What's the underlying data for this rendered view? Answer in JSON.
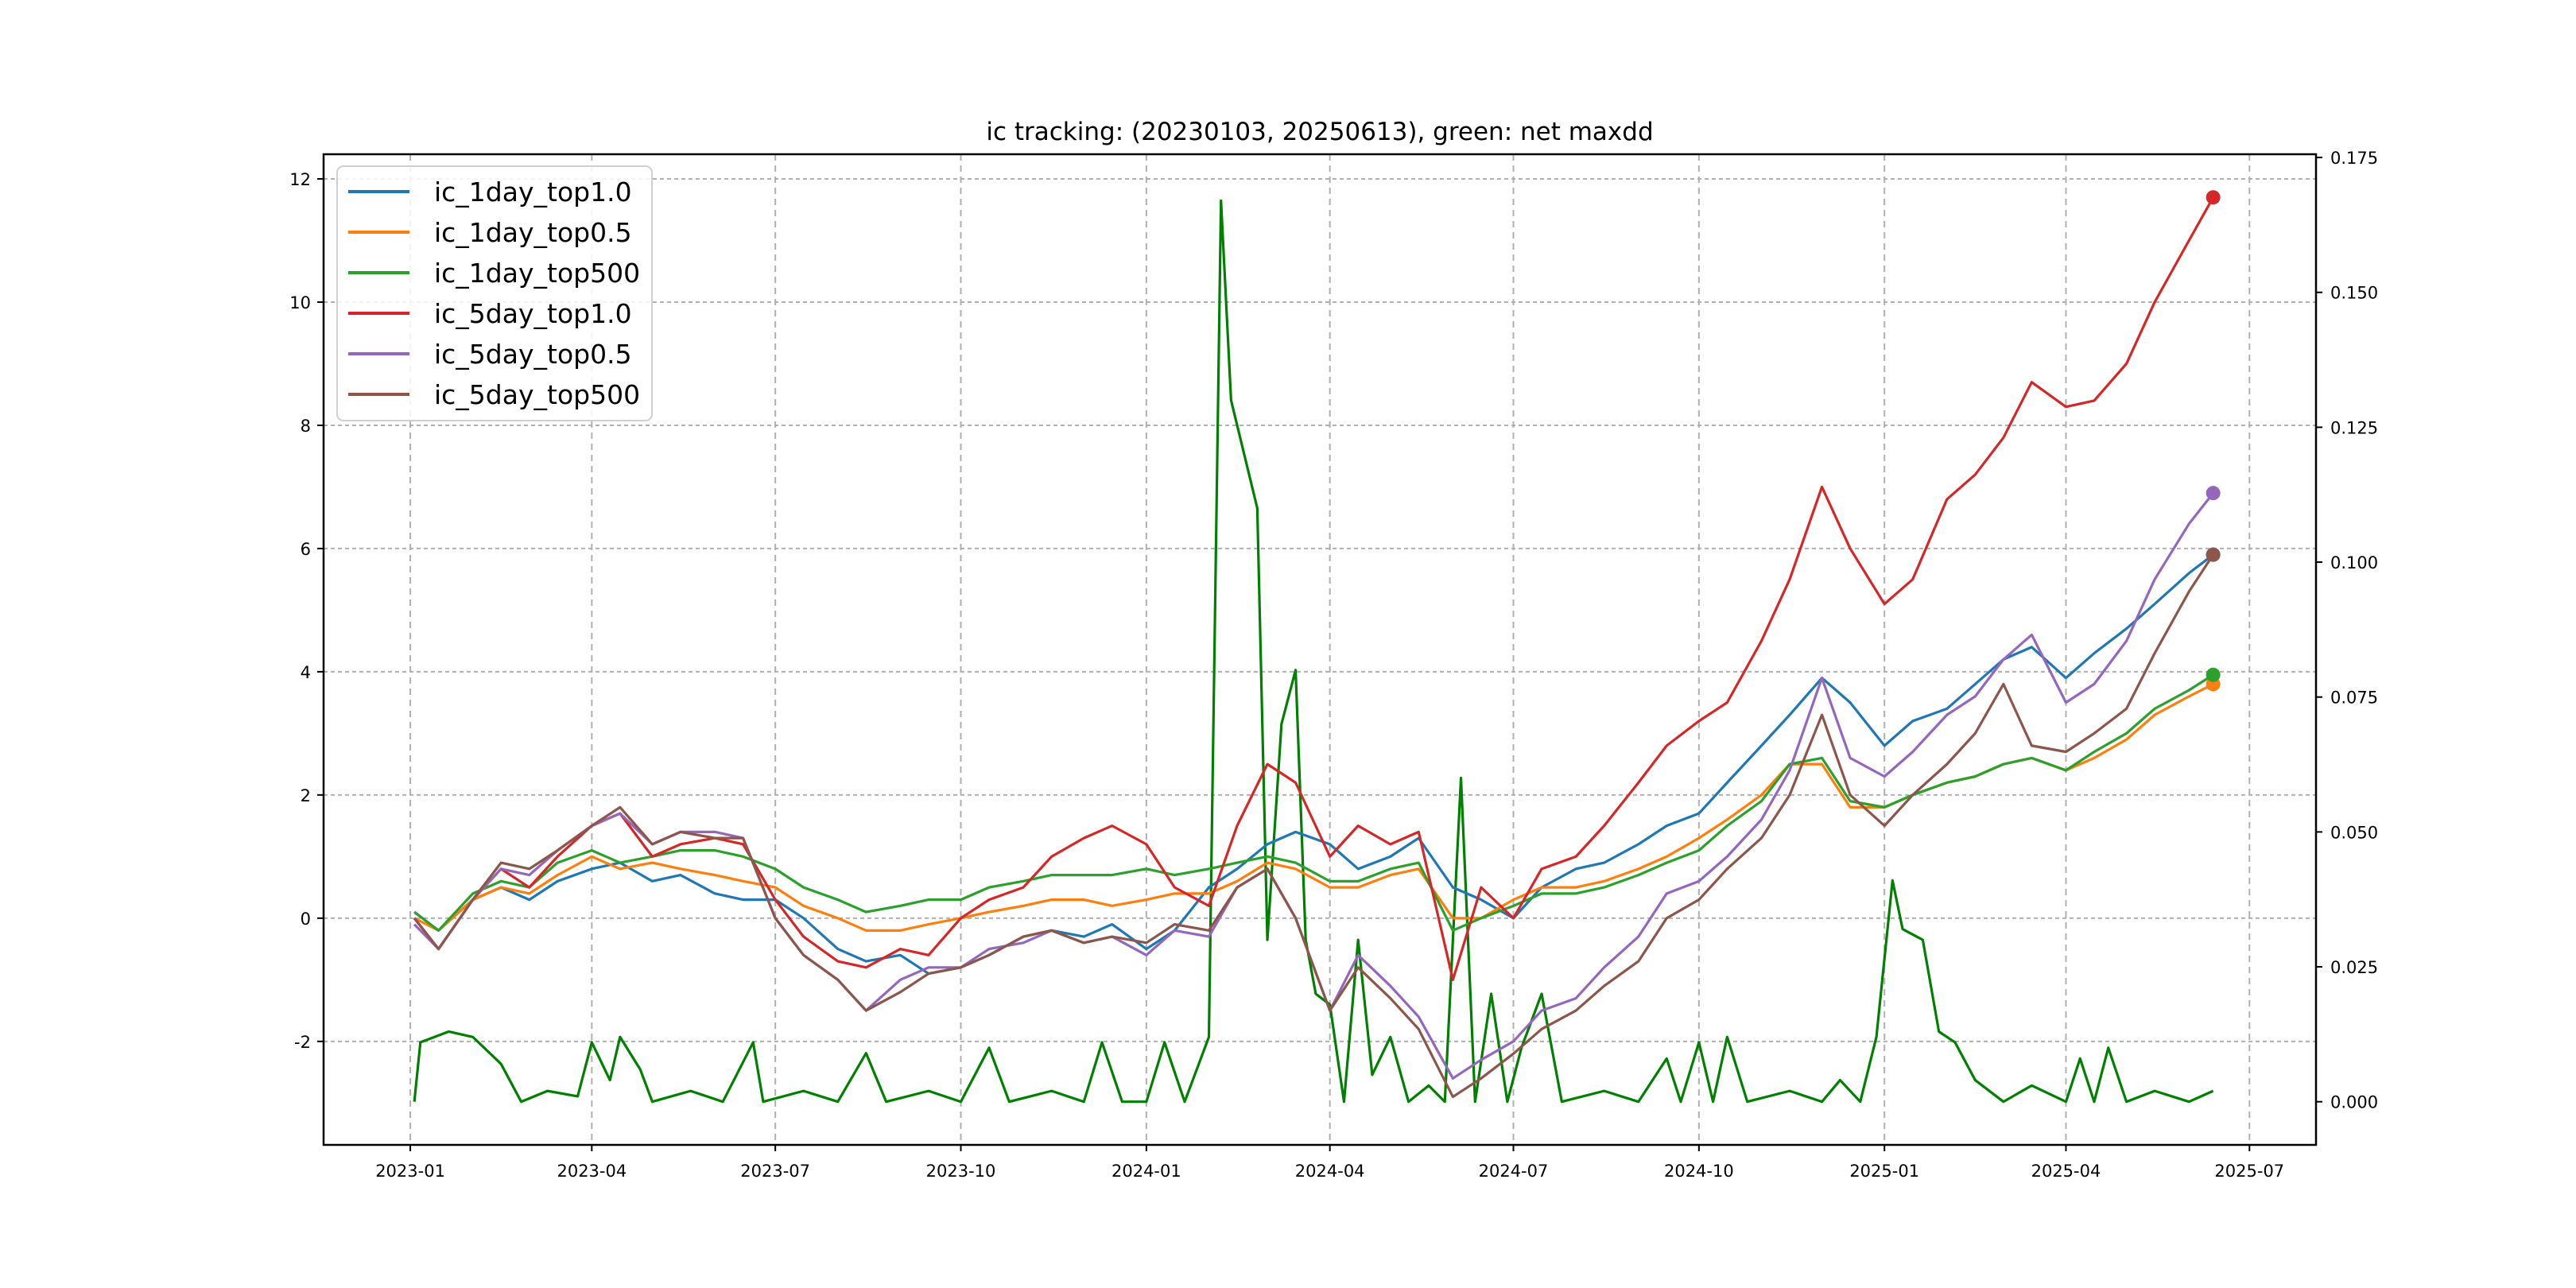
{
  "chart_data": {
    "type": "line",
    "title": "ic tracking: (20230103, 20250613), green: net maxdd",
    "xlabel": "",
    "ylabel": "",
    "xlim": [
      "2022-11-19",
      "2025-08-03"
    ],
    "ylim": [
      -3.68,
      12.4
    ],
    "ylim_right": [
      -0.008,
      0.1756
    ],
    "grid": true,
    "legend_position": "top-left",
    "x_ticks": [
      "2023-01",
      "2023-04",
      "2023-07",
      "2023-10",
      "2024-01",
      "2024-04",
      "2024-07",
      "2024-10",
      "2025-01",
      "2025-04",
      "2025-07"
    ],
    "y_ticks": [
      "-2",
      "0",
      "2",
      "4",
      "6",
      "8",
      "10",
      "12"
    ],
    "y_ticks_right": [
      "0.000",
      "0.025",
      "0.050",
      "0.075",
      "0.100",
      "0.125",
      "0.150",
      "0.175"
    ],
    "x": [
      "2023-01-03",
      "2023-01-15",
      "2023-02-01",
      "2023-02-15",
      "2023-03-01",
      "2023-03-15",
      "2023-04-01",
      "2023-04-15",
      "2023-05-01",
      "2023-05-15",
      "2023-06-01",
      "2023-06-15",
      "2023-07-01",
      "2023-07-15",
      "2023-08-01",
      "2023-08-15",
      "2023-09-01",
      "2023-09-15",
      "2023-10-01",
      "2023-10-15",
      "2023-11-01",
      "2023-11-15",
      "2023-12-01",
      "2023-12-15",
      "2024-01-01",
      "2024-01-15",
      "2024-02-01",
      "2024-02-15",
      "2024-03-01",
      "2024-03-15",
      "2024-04-01",
      "2024-04-15",
      "2024-05-01",
      "2024-05-15",
      "2024-06-01",
      "2024-06-15",
      "2024-07-01",
      "2024-07-15",
      "2024-08-01",
      "2024-08-15",
      "2024-09-01",
      "2024-09-15",
      "2024-10-01",
      "2024-10-15",
      "2024-11-01",
      "2024-11-15",
      "2024-12-01",
      "2024-12-15",
      "2025-01-01",
      "2025-01-15",
      "2025-02-01",
      "2025-02-15",
      "2025-03-01",
      "2025-03-15",
      "2025-04-01",
      "2025-04-15",
      "2025-05-01",
      "2025-05-15",
      "2025-06-01",
      "2025-06-13"
    ],
    "series": [
      {
        "name": "ic_1day_top1.0",
        "color": "#1f77b4",
        "values": [
          0.1,
          -0.2,
          0.3,
          0.5,
          0.3,
          0.6,
          0.8,
          0.9,
          0.6,
          0.7,
          0.4,
          0.3,
          0.3,
          0.0,
          -0.5,
          -0.7,
          -0.6,
          -0.9,
          -0.8,
          -0.6,
          -0.3,
          -0.2,
          -0.3,
          -0.1,
          -0.5,
          -0.2,
          0.5,
          0.8,
          1.2,
          1.4,
          1.2,
          0.8,
          1.0,
          1.3,
          0.5,
          0.3,
          0.0,
          0.5,
          0.8,
          0.9,
          1.2,
          1.5,
          1.7,
          2.2,
          2.8,
          3.3,
          3.9,
          3.5,
          2.8,
          3.2,
          3.4,
          3.8,
          4.2,
          4.4,
          3.9,
          4.3,
          4.7,
          5.1,
          5.6,
          5.9
        ]
      },
      {
        "name": "ic_1day_top0.5",
        "color": "#ff7f0e",
        "values": [
          0.0,
          -0.2,
          0.3,
          0.5,
          0.4,
          0.7,
          1.0,
          0.8,
          0.9,
          0.8,
          0.7,
          0.6,
          0.5,
          0.2,
          0.0,
          -0.2,
          -0.2,
          -0.1,
          0.0,
          0.1,
          0.2,
          0.3,
          0.3,
          0.2,
          0.3,
          0.4,
          0.4,
          0.6,
          0.9,
          0.8,
          0.5,
          0.5,
          0.7,
          0.8,
          0.0,
          0.0,
          0.3,
          0.5,
          0.5,
          0.6,
          0.8,
          1.0,
          1.3,
          1.6,
          2.0,
          2.5,
          2.5,
          1.8,
          1.8,
          2.0,
          2.2,
          2.3,
          2.5,
          2.6,
          2.4,
          2.6,
          2.9,
          3.3,
          3.6,
          3.8
        ]
      },
      {
        "name": "ic_1day_top500",
        "color": "#2ca02c",
        "values": [
          0.1,
          -0.2,
          0.4,
          0.6,
          0.5,
          0.9,
          1.1,
          0.9,
          1.0,
          1.1,
          1.1,
          1.0,
          0.8,
          0.5,
          0.3,
          0.1,
          0.2,
          0.3,
          0.3,
          0.5,
          0.6,
          0.7,
          0.7,
          0.7,
          0.8,
          0.7,
          0.8,
          0.9,
          1.0,
          0.9,
          0.6,
          0.6,
          0.8,
          0.9,
          -0.2,
          0.0,
          0.2,
          0.4,
          0.4,
          0.5,
          0.7,
          0.9,
          1.1,
          1.5,
          1.9,
          2.5,
          2.6,
          1.9,
          1.8,
          2.0,
          2.2,
          2.3,
          2.5,
          2.6,
          2.4,
          2.7,
          3.0,
          3.4,
          3.7,
          3.95
        ]
      },
      {
        "name": "ic_5day_top1.0",
        "color": "#d62728",
        "values": [
          0.0,
          -0.5,
          0.3,
          0.8,
          0.5,
          1.0,
          1.5,
          1.7,
          1.0,
          1.2,
          1.3,
          1.2,
          0.3,
          -0.3,
          -0.7,
          -0.8,
          -0.5,
          -0.6,
          0.0,
          0.3,
          0.5,
          1.0,
          1.3,
          1.5,
          1.2,
          0.5,
          0.2,
          1.5,
          2.5,
          2.2,
          1.0,
          1.5,
          1.2,
          1.4,
          -1.0,
          0.5,
          0.0,
          0.8,
          1.0,
          1.5,
          2.2,
          2.8,
          3.2,
          3.5,
          4.5,
          5.5,
          7.0,
          6.0,
          5.1,
          5.5,
          6.8,
          7.2,
          7.8,
          8.7,
          8.3,
          8.4,
          9.0,
          10.0,
          11.0,
          11.7
        ]
      },
      {
        "name": "ic_5day_top0.5",
        "color": "#9467bd",
        "values": [
          -0.1,
          -0.5,
          0.3,
          0.8,
          0.7,
          1.1,
          1.5,
          1.7,
          1.2,
          1.4,
          1.4,
          1.3,
          0.0,
          -0.6,
          -1.0,
          -1.5,
          -1.0,
          -0.8,
          -0.8,
          -0.5,
          -0.4,
          -0.2,
          -0.4,
          -0.3,
          -0.6,
          -0.2,
          -0.3,
          0.5,
          0.8,
          0.0,
          -1.5,
          -0.6,
          -1.1,
          -1.6,
          -2.6,
          -2.3,
          -2.0,
          -1.5,
          -1.3,
          -0.8,
          -0.3,
          0.4,
          0.6,
          1.0,
          1.6,
          2.4,
          3.9,
          2.6,
          2.3,
          2.7,
          3.3,
          3.6,
          4.2,
          4.6,
          3.5,
          3.8,
          4.5,
          5.5,
          6.4,
          6.9
        ]
      },
      {
        "name": "ic_5day_top500",
        "color": "#8c564b",
        "values": [
          0.0,
          -0.5,
          0.3,
          0.9,
          0.8,
          1.1,
          1.5,
          1.8,
          1.2,
          1.4,
          1.3,
          1.3,
          0.0,
          -0.6,
          -1.0,
          -1.5,
          -1.2,
          -0.9,
          -0.8,
          -0.6,
          -0.3,
          -0.2,
          -0.4,
          -0.3,
          -0.4,
          -0.1,
          -0.2,
          0.5,
          0.8,
          0.0,
          -1.5,
          -0.8,
          -1.3,
          -1.8,
          -2.9,
          -2.6,
          -2.2,
          -1.8,
          -1.5,
          -1.1,
          -0.7,
          0.0,
          0.3,
          0.8,
          1.3,
          2.0,
          3.3,
          2.0,
          1.5,
          2.0,
          2.5,
          3.0,
          3.8,
          2.8,
          2.7,
          3.0,
          3.4,
          4.3,
          5.3,
          5.9
        ]
      }
    ],
    "secondary_series": {
      "name": "net maxdd",
      "axis": "right",
      "color": "#008000",
      "x": [
        "2023-01-03",
        "2023-01-06",
        "2023-01-20",
        "2023-02-01",
        "2023-02-15",
        "2023-02-25",
        "2023-03-10",
        "2023-03-25",
        "2023-04-01",
        "2023-04-10",
        "2023-04-15",
        "2023-04-25",
        "2023-05-01",
        "2023-05-20",
        "2023-06-05",
        "2023-06-20",
        "2023-06-25",
        "2023-07-15",
        "2023-08-01",
        "2023-08-15",
        "2023-08-25",
        "2023-09-15",
        "2023-10-01",
        "2023-10-15",
        "2023-10-25",
        "2023-11-15",
        "2023-12-01",
        "2023-12-10",
        "2023-12-20",
        "2024-01-01",
        "2024-01-10",
        "2024-01-20",
        "2024-02-01",
        "2024-02-07",
        "2024-02-12",
        "2024-02-25",
        "2024-03-01",
        "2024-03-08",
        "2024-03-15",
        "2024-03-20",
        "2024-03-25",
        "2024-04-01",
        "2024-04-08",
        "2024-04-15",
        "2024-04-22",
        "2024-05-01",
        "2024-05-10",
        "2024-05-20",
        "2024-05-28",
        "2024-06-05",
        "2024-06-12",
        "2024-06-20",
        "2024-06-28",
        "2024-07-05",
        "2024-07-15",
        "2024-07-25",
        "2024-08-15",
        "2024-09-01",
        "2024-09-15",
        "2024-09-22",
        "2024-10-01",
        "2024-10-08",
        "2024-10-15",
        "2024-10-25",
        "2024-11-15",
        "2024-12-01",
        "2024-12-10",
        "2024-12-20",
        "2024-12-28",
        "2025-01-05",
        "2025-01-10",
        "2025-01-20",
        "2025-01-28",
        "2025-02-05",
        "2025-02-15",
        "2025-03-01",
        "2025-03-15",
        "2025-04-01",
        "2025-04-08",
        "2025-04-15",
        "2025-04-22",
        "2025-05-01",
        "2025-05-15",
        "2025-06-01",
        "2025-06-13"
      ],
      "values": [
        0.0,
        0.011,
        0.013,
        0.012,
        0.007,
        0.0,
        0.002,
        0.001,
        0.011,
        0.004,
        0.012,
        0.006,
        0.0,
        0.002,
        0.0,
        0.011,
        0.0,
        0.002,
        0.0,
        0.009,
        0.0,
        0.002,
        0.0,
        0.01,
        0.0,
        0.002,
        0.0,
        0.011,
        0.0,
        0.0,
        0.011,
        0.0,
        0.012,
        0.167,
        0.13,
        0.11,
        0.03,
        0.07,
        0.08,
        0.03,
        0.02,
        0.018,
        0.0,
        0.03,
        0.005,
        0.012,
        0.0,
        0.003,
        0.0,
        0.06,
        0.0,
        0.02,
        0.0,
        0.01,
        0.02,
        0.0,
        0.002,
        0.0,
        0.008,
        0.0,
        0.011,
        0.0,
        0.012,
        0.0,
        0.002,
        0.0,
        0.004,
        0.0,
        0.012,
        0.041,
        0.032,
        0.03,
        0.013,
        0.011,
        0.004,
        0.0,
        0.003,
        0.0,
        0.008,
        0.0,
        0.01,
        0.0,
        0.002,
        0.0,
        0.002
      ]
    }
  }
}
